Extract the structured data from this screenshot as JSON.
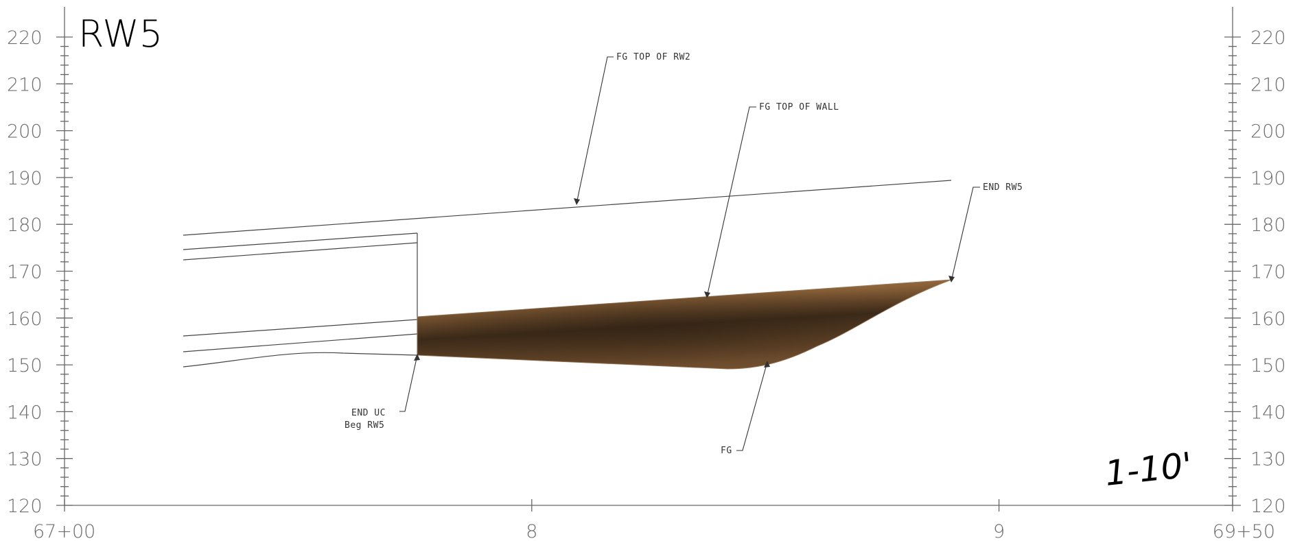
{
  "title": "RW5",
  "scale_note": "1-10'",
  "y_axis": {
    "min": 120,
    "max": 220,
    "step": 10,
    "ticks": [
      "120",
      "130",
      "140",
      "150",
      "160",
      "170",
      "180",
      "190",
      "200",
      "210",
      "220"
    ]
  },
  "x_axis": {
    "ticks": [
      {
        "value": 6700,
        "label": "67+00"
      },
      {
        "value": 6800,
        "label": "8"
      },
      {
        "value": 6900,
        "label": "9"
      },
      {
        "value": 6950,
        "label": "69+50"
      }
    ]
  },
  "callouts": {
    "fg_top_rw2": "FG TOP OF RW2",
    "fg_top_wall": "FG TOP OF WALL",
    "end_rw5": "END RW5",
    "end_uc": "END UC",
    "beg_rw5": "Beg RW5",
    "fg": "FG"
  },
  "colors": {
    "wall_fill_light": "#b08456",
    "wall_fill_dark": "#3d2a18",
    "line": "#444444"
  }
}
